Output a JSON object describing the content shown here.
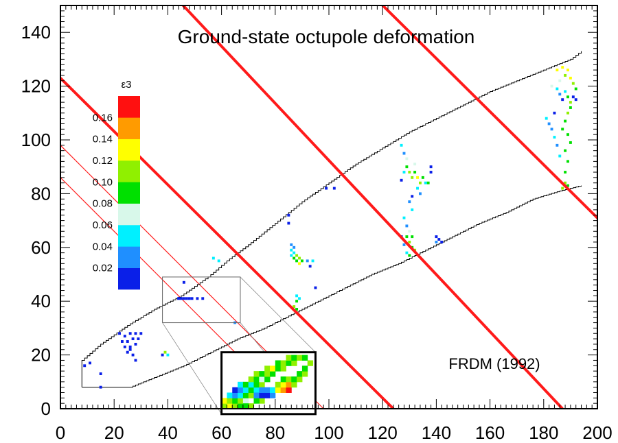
{
  "chart_data": {
    "type": "heatmap",
    "title": "Ground-state octupole deformation",
    "annotation": "FRDM (1992)",
    "xlabel": "",
    "ylabel": "",
    "xlim": [
      0,
      200
    ],
    "ylim": [
      0,
      150
    ],
    "x_ticks": [
      0,
      20,
      40,
      60,
      80,
      100,
      120,
      140,
      160,
      180,
      200
    ],
    "y_ticks": [
      0,
      20,
      40,
      60,
      80,
      100,
      120,
      140
    ],
    "legend": {
      "symbol": "ε3",
      "bins": [
        {
          "upper": 0.02,
          "color": "#0a1fe8"
        },
        {
          "upper": 0.04,
          "color": "#1f8fff"
        },
        {
          "upper": 0.06,
          "color": "#00f0ff"
        },
        {
          "upper": 0.08,
          "color": "#d8f8ea"
        },
        {
          "upper": 0.1,
          "color": "#00e000"
        },
        {
          "upper": 0.12,
          "color": "#90f000"
        },
        {
          "upper": 0.14,
          "color": "#ffff00"
        },
        {
          "upper": 0.16,
          "color": "#ff9b00"
        },
        {
          "upper": 0.18,
          "color": "#ff1010"
        }
      ],
      "labels": [
        "0.02",
        "0.04",
        "0.06",
        "0.08",
        "0.10",
        "0.12",
        "0.14",
        "0.16"
      ]
    },
    "drip_lines": {
      "upper": [
        [
          8,
          8
        ],
        [
          8,
          18
        ],
        [
          15,
          24
        ],
        [
          25,
          31
        ],
        [
          35,
          37
        ],
        [
          45,
          42
        ],
        [
          55,
          49
        ],
        [
          62,
          55
        ],
        [
          70,
          61
        ],
        [
          80,
          69
        ],
        [
          90,
          77
        ],
        [
          100,
          84
        ],
        [
          110,
          91
        ],
        [
          120,
          97
        ],
        [
          130,
          103
        ],
        [
          140,
          108
        ],
        [
          150,
          113
        ],
        [
          160,
          118
        ],
        [
          170,
          122
        ],
        [
          180,
          126
        ],
        [
          190,
          130
        ],
        [
          194,
          133
        ]
      ],
      "lower": [
        [
          8,
          8
        ],
        [
          26,
          8
        ],
        [
          36,
          12
        ],
        [
          46,
          16
        ],
        [
          56,
          21
        ],
        [
          66,
          26
        ],
        [
          76,
          30
        ],
        [
          86,
          35
        ],
        [
          96,
          40
        ],
        [
          106,
          45
        ],
        [
          116,
          50
        ],
        [
          126,
          54
        ],
        [
          136,
          59
        ],
        [
          146,
          64
        ],
        [
          156,
          69
        ],
        [
          166,
          73
        ],
        [
          176,
          78
        ],
        [
          186,
          81
        ],
        [
          194,
          83
        ]
      ]
    },
    "magic_lines_thick": [
      [
        [
          0,
          123
        ],
        [
          124,
          0
        ]
      ],
      [
        [
          41,
          155
        ],
        [
          187,
          0
        ]
      ],
      [
        [
          115,
          155
        ],
        [
          202,
          69
        ]
      ]
    ],
    "magic_lines_thin": [
      [
        [
          0,
          98
        ],
        [
          98,
          0
        ]
      ],
      [
        [
          0,
          86
        ],
        [
          86,
          0
        ]
      ]
    ],
    "zoom_box": {
      "x": [
        38,
        67
      ],
      "y": [
        32,
        49
      ]
    },
    "points": [
      {
        "x": 9,
        "y": 16,
        "v": 0.01
      },
      {
        "x": 11,
        "y": 17,
        "v": 0.01
      },
      {
        "x": 15,
        "y": 13,
        "v": 0.01
      },
      {
        "x": 15,
        "y": 8,
        "v": 0.01
      },
      {
        "x": 22,
        "y": 28,
        "v": 0.01
      },
      {
        "x": 24,
        "y": 27,
        "v": 0.01
      },
      {
        "x": 26,
        "y": 28,
        "v": 0.01
      },
      {
        "x": 28,
        "y": 28,
        "v": 0.01
      },
      {
        "x": 30,
        "y": 28,
        "v": 0.01
      },
      {
        "x": 23,
        "y": 25,
        "v": 0.01
      },
      {
        "x": 25,
        "y": 25,
        "v": 0.01
      },
      {
        "x": 27,
        "y": 26,
        "v": 0.01
      },
      {
        "x": 29,
        "y": 26,
        "v": 0.01
      },
      {
        "x": 24,
        "y": 23,
        "v": 0.01
      },
      {
        "x": 26,
        "y": 23,
        "v": 0.01
      },
      {
        "x": 28,
        "y": 24,
        "v": 0.01
      },
      {
        "x": 25,
        "y": 21,
        "v": 0.01
      },
      {
        "x": 27,
        "y": 20,
        "v": 0.01
      },
      {
        "x": 28,
        "y": 18,
        "v": 0.01
      },
      {
        "x": 26,
        "y": 22,
        "v": 0.01
      },
      {
        "x": 38,
        "y": 20,
        "v": 0.01
      },
      {
        "x": 39,
        "y": 21,
        "v": 0.11
      },
      {
        "x": 40,
        "y": 20,
        "v": 0.05
      },
      {
        "x": 44,
        "y": 41,
        "v": 0.01
      },
      {
        "x": 45,
        "y": 41,
        "v": 0.01
      },
      {
        "x": 46,
        "y": 41,
        "v": 0.01
      },
      {
        "x": 47,
        "y": 41,
        "v": 0.01
      },
      {
        "x": 48,
        "y": 41,
        "v": 0.01
      },
      {
        "x": 49,
        "y": 41,
        "v": 0.01
      },
      {
        "x": 51,
        "y": 41,
        "v": 0.01
      },
      {
        "x": 53,
        "y": 41,
        "v": 0.01
      },
      {
        "x": 46,
        "y": 47,
        "v": 0.01
      },
      {
        "x": 59,
        "y": 55,
        "v": 0.05
      },
      {
        "x": 57,
        "y": 56,
        "v": 0.05
      },
      {
        "x": 65,
        "y": 32,
        "v": 0.03
      },
      {
        "x": 86,
        "y": 57,
        "v": 0.05
      },
      {
        "x": 87,
        "y": 56,
        "v": 0.09
      },
      {
        "x": 88,
        "y": 57,
        "v": 0.11
      },
      {
        "x": 88,
        "y": 55,
        "v": 0.09
      },
      {
        "x": 89,
        "y": 56,
        "v": 0.11
      },
      {
        "x": 87,
        "y": 58,
        "v": 0.05
      },
      {
        "x": 87,
        "y": 60,
        "v": 0.03
      },
      {
        "x": 86,
        "y": 61,
        "v": 0.03
      },
      {
        "x": 89,
        "y": 54,
        "v": 0.13
      },
      {
        "x": 90,
        "y": 55,
        "v": 0.09
      },
      {
        "x": 86,
        "y": 59,
        "v": 0.05
      },
      {
        "x": 92,
        "y": 55,
        "v": 0.03
      },
      {
        "x": 94,
        "y": 55,
        "v": 0.05
      },
      {
        "x": 93,
        "y": 53,
        "v": 0.01
      },
      {
        "x": 85,
        "y": 72,
        "v": 0.01
      },
      {
        "x": 85,
        "y": 69,
        "v": 0.01
      },
      {
        "x": 95,
        "y": 45,
        "v": 0.01
      },
      {
        "x": 88,
        "y": 42,
        "v": 0.05
      },
      {
        "x": 88,
        "y": 40,
        "v": 0.09
      },
      {
        "x": 87,
        "y": 38,
        "v": 0.11
      },
      {
        "x": 88,
        "y": 37,
        "v": 0.09
      },
      {
        "x": 89,
        "y": 41,
        "v": 0.05
      },
      {
        "x": 99,
        "y": 82,
        "v": 0.01
      },
      {
        "x": 102,
        "y": 82,
        "v": 0.01
      },
      {
        "x": 127,
        "y": 98,
        "v": 0.05
      },
      {
        "x": 128,
        "y": 95,
        "v": 0.03
      },
      {
        "x": 129,
        "y": 93,
        "v": 0.07
      },
      {
        "x": 129,
        "y": 90,
        "v": 0.09
      },
      {
        "x": 130,
        "y": 88,
        "v": 0.11
      },
      {
        "x": 131,
        "y": 86,
        "v": 0.11
      },
      {
        "x": 132,
        "y": 88,
        "v": 0.09
      },
      {
        "x": 133,
        "y": 86,
        "v": 0.13
      },
      {
        "x": 134,
        "y": 84,
        "v": 0.11
      },
      {
        "x": 133,
        "y": 82,
        "v": 0.05
      },
      {
        "x": 135,
        "y": 86,
        "v": 0.09
      },
      {
        "x": 136,
        "y": 84,
        "v": 0.05
      },
      {
        "x": 134,
        "y": 80,
        "v": 0.03
      },
      {
        "x": 131,
        "y": 79,
        "v": 0.01
      },
      {
        "x": 128,
        "y": 88,
        "v": 0.05
      },
      {
        "x": 127,
        "y": 85,
        "v": 0.01
      },
      {
        "x": 138,
        "y": 88,
        "v": 0.01
      },
      {
        "x": 138,
        "y": 90,
        "v": 0.01
      },
      {
        "x": 137,
        "y": 84,
        "v": 0.09
      },
      {
        "x": 132,
        "y": 91,
        "v": 0.07
      },
      {
        "x": 128,
        "y": 71,
        "v": 0.05
      },
      {
        "x": 129,
        "y": 68,
        "v": 0.03
      },
      {
        "x": 130,
        "y": 66,
        "v": 0.07
      },
      {
        "x": 129,
        "y": 64,
        "v": 0.09
      },
      {
        "x": 130,
        "y": 62,
        "v": 0.11
      },
      {
        "x": 131,
        "y": 60,
        "v": 0.09
      },
      {
        "x": 129,
        "y": 58,
        "v": 0.05
      },
      {
        "x": 130,
        "y": 57,
        "v": 0.09
      },
      {
        "x": 132,
        "y": 59,
        "v": 0.11
      },
      {
        "x": 131,
        "y": 64,
        "v": 0.09
      },
      {
        "x": 128,
        "y": 61,
        "v": 0.03
      },
      {
        "x": 127,
        "y": 64,
        "v": 0.01
      },
      {
        "x": 131,
        "y": 74,
        "v": 0.05
      },
      {
        "x": 130,
        "y": 77,
        "v": 0.03
      },
      {
        "x": 140,
        "y": 64,
        "v": 0.01
      },
      {
        "x": 141,
        "y": 63,
        "v": 0.01
      },
      {
        "x": 140,
        "y": 62,
        "v": 0.03
      },
      {
        "x": 142,
        "y": 62,
        "v": 0.01
      },
      {
        "x": 185,
        "y": 126,
        "v": 0.13
      },
      {
        "x": 187,
        "y": 127,
        "v": 0.13
      },
      {
        "x": 189,
        "y": 126,
        "v": 0.13
      },
      {
        "x": 188,
        "y": 124,
        "v": 0.11
      },
      {
        "x": 190,
        "y": 123,
        "v": 0.13
      },
      {
        "x": 191,
        "y": 121,
        "v": 0.11
      },
      {
        "x": 192,
        "y": 119,
        "v": 0.09
      },
      {
        "x": 186,
        "y": 122,
        "v": 0.07
      },
      {
        "x": 185,
        "y": 119,
        "v": 0.05
      },
      {
        "x": 186,
        "y": 117,
        "v": 0.03
      },
      {
        "x": 187,
        "y": 115,
        "v": 0.01
      },
      {
        "x": 188,
        "y": 118,
        "v": 0.05
      },
      {
        "x": 189,
        "y": 116,
        "v": 0.09
      },
      {
        "x": 190,
        "y": 114,
        "v": 0.11
      },
      {
        "x": 191,
        "y": 116,
        "v": 0.01
      },
      {
        "x": 192,
        "y": 115,
        "v": 0.01
      },
      {
        "x": 190,
        "y": 112,
        "v": 0.09
      },
      {
        "x": 189,
        "y": 110,
        "v": 0.11
      },
      {
        "x": 188,
        "y": 107,
        "v": 0.09
      },
      {
        "x": 187,
        "y": 104,
        "v": 0.09
      },
      {
        "x": 189,
        "y": 102,
        "v": 0.09
      },
      {
        "x": 190,
        "y": 99,
        "v": 0.09
      },
      {
        "x": 188,
        "y": 96,
        "v": 0.09
      },
      {
        "x": 189,
        "y": 92,
        "v": 0.09
      },
      {
        "x": 188,
        "y": 88,
        "v": 0.09
      },
      {
        "x": 188,
        "y": 84,
        "v": 0.11
      },
      {
        "x": 187,
        "y": 82,
        "v": 0.11
      },
      {
        "x": 189,
        "y": 83,
        "v": 0.09
      },
      {
        "x": 181,
        "y": 108,
        "v": 0.05
      },
      {
        "x": 182,
        "y": 106,
        "v": 0.03
      },
      {
        "x": 183,
        "y": 104,
        "v": 0.03
      },
      {
        "x": 184,
        "y": 101,
        "v": 0.05
      },
      {
        "x": 185,
        "y": 98,
        "v": 0.03
      },
      {
        "x": 186,
        "y": 94,
        "v": 0.05
      },
      {
        "x": 184,
        "y": 110,
        "v": 0.01
      },
      {
        "x": 183,
        "y": 120,
        "v": 0.07
      }
    ],
    "inset_cells": [
      {
        "x": 60,
        "y": 0,
        "v": 0.11
      },
      {
        "x": 62,
        "y": 0,
        "v": 0.13
      },
      {
        "x": 64,
        "y": 0,
        "v": 0.11
      },
      {
        "x": 66,
        "y": 0,
        "v": 0.09
      },
      {
        "x": 60,
        "y": 2,
        "v": 0.13
      },
      {
        "x": 62,
        "y": 2,
        "v": 0.11
      },
      {
        "x": 64,
        "y": 2,
        "v": 0.09
      },
      {
        "x": 66,
        "y": 2,
        "v": 0.11
      },
      {
        "x": 68,
        "y": 2,
        "v": 0.07
      },
      {
        "x": 62,
        "y": 4,
        "v": 0.05
      },
      {
        "x": 64,
        "y": 4,
        "v": 0.03
      },
      {
        "x": 66,
        "y": 4,
        "v": 0.05
      },
      {
        "x": 68,
        "y": 4,
        "v": 0.09
      },
      {
        "x": 70,
        "y": 4,
        "v": 0.11
      },
      {
        "x": 64,
        "y": 6,
        "v": 0.01
      },
      {
        "x": 66,
        "y": 6,
        "v": 0.03
      },
      {
        "x": 68,
        "y": 6,
        "v": 0.05
      },
      {
        "x": 70,
        "y": 6,
        "v": 0.09
      },
      {
        "x": 72,
        "y": 6,
        "v": 0.05
      },
      {
        "x": 66,
        "y": 8,
        "v": 0.05
      },
      {
        "x": 68,
        "y": 8,
        "v": 0.09
      },
      {
        "x": 70,
        "y": 8,
        "v": 0.05
      },
      {
        "x": 72,
        "y": 8,
        "v": 0.09
      },
      {
        "x": 74,
        "y": 8,
        "v": 0.11
      },
      {
        "x": 70,
        "y": 10,
        "v": 0.11
      },
      {
        "x": 72,
        "y": 10,
        "v": 0.09
      },
      {
        "x": 74,
        "y": 10,
        "v": 0.07
      },
      {
        "x": 76,
        "y": 10,
        "v": 0.09
      },
      {
        "x": 72,
        "y": 12,
        "v": 0.11
      },
      {
        "x": 74,
        "y": 12,
        "v": 0.09
      },
      {
        "x": 76,
        "y": 12,
        "v": 0.11
      },
      {
        "x": 78,
        "y": 12,
        "v": 0.09
      },
      {
        "x": 76,
        "y": 14,
        "v": 0.11
      },
      {
        "x": 78,
        "y": 14,
        "v": 0.13
      },
      {
        "x": 80,
        "y": 14,
        "v": 0.09
      },
      {
        "x": 82,
        "y": 14,
        "v": 0.11
      },
      {
        "x": 80,
        "y": 16,
        "v": 0.09
      },
      {
        "x": 82,
        "y": 16,
        "v": 0.11
      },
      {
        "x": 84,
        "y": 16,
        "v": 0.09
      },
      {
        "x": 86,
        "y": 16,
        "v": 0.11
      },
      {
        "x": 84,
        "y": 18,
        "v": 0.11
      },
      {
        "x": 86,
        "y": 18,
        "v": 0.09
      },
      {
        "x": 88,
        "y": 18,
        "v": 0.11
      },
      {
        "x": 90,
        "y": 18,
        "v": 0.09
      },
      {
        "x": 76,
        "y": 4,
        "v": 0.01
      },
      {
        "x": 78,
        "y": 4,
        "v": 0.03
      },
      {
        "x": 76,
        "y": 6,
        "v": 0.03
      },
      {
        "x": 78,
        "y": 6,
        "v": 0.05
      },
      {
        "x": 80,
        "y": 6,
        "v": 0.13
      },
      {
        "x": 82,
        "y": 6,
        "v": 0.15
      },
      {
        "x": 84,
        "y": 6,
        "v": 0.17
      },
      {
        "x": 80,
        "y": 8,
        "v": 0.11
      },
      {
        "x": 82,
        "y": 8,
        "v": 0.13
      },
      {
        "x": 84,
        "y": 8,
        "v": 0.15
      },
      {
        "x": 86,
        "y": 8,
        "v": 0.11
      },
      {
        "x": 82,
        "y": 10,
        "v": 0.09
      },
      {
        "x": 84,
        "y": 10,
        "v": 0.11
      },
      {
        "x": 86,
        "y": 10,
        "v": 0.09
      },
      {
        "x": 88,
        "y": 10,
        "v": 0.11
      },
      {
        "x": 88,
        "y": 12,
        "v": 0.09
      },
      {
        "x": 90,
        "y": 12,
        "v": 0.11
      },
      {
        "x": 90,
        "y": 14,
        "v": 0.09
      },
      {
        "x": 92,
        "y": 16,
        "v": 0.11
      },
      {
        "x": 74,
        "y": 2,
        "v": 0.11
      },
      {
        "x": 72,
        "y": 2,
        "v": 0.09
      },
      {
        "x": 70,
        "y": 0,
        "v": 0.11
      },
      {
        "x": 68,
        "y": 0,
        "v": 0.09
      },
      {
        "x": 72,
        "y": 4,
        "v": 0.03
      },
      {
        "x": 74,
        "y": 4,
        "v": 0.01
      },
      {
        "x": 74,
        "y": 6,
        "v": 0.03
      }
    ]
  }
}
